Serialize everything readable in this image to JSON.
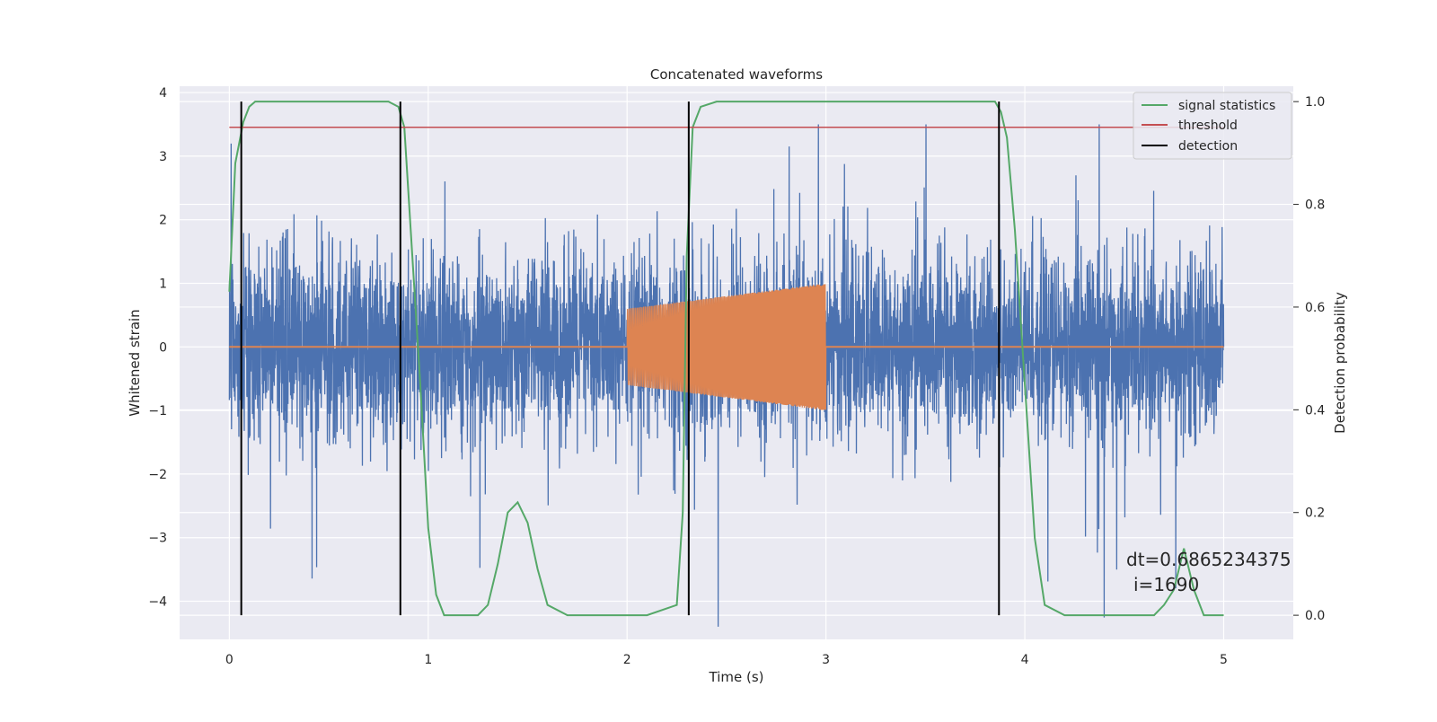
{
  "chart_data": {
    "type": "line",
    "title": "Concatenated waveforms",
    "xlabel": "Time (s)",
    "ylabel": "Whitened strain",
    "ylabel_right": "Detection probability",
    "xlim": [
      -0.25,
      5.35
    ],
    "ylim": [
      -4.6,
      4.1
    ],
    "ylim_right": [
      -0.047,
      1.03
    ],
    "xticks": [
      0,
      1,
      2,
      3,
      4,
      5
    ],
    "yticks": [
      4,
      3,
      2,
      1,
      0,
      -1,
      -2,
      -3,
      -4
    ],
    "yticks_right": [
      1.0,
      0.8,
      0.6,
      0.4,
      0.2,
      0.0
    ],
    "xtick_labels": [
      "0",
      "1",
      "2",
      "3",
      "4",
      "5"
    ],
    "ytick_labels": [
      "4",
      "3",
      "2",
      "1",
      "0",
      "−1",
      "−2",
      "−3",
      "−4"
    ],
    "ytick_labels_right": [
      "1.0",
      "0.8",
      "0.6",
      "0.4",
      "0.2",
      "0.0"
    ],
    "grid": true,
    "legend_position": "top-right",
    "legend": [
      "signal statistics",
      "threshold",
      "detection"
    ],
    "colors": {
      "background": "#eaeaf2",
      "grid": "#ffffff",
      "strain": "#4c72b0",
      "injection": "#dd8452",
      "signal_statistics": "#55a868",
      "threshold": "#c44e52",
      "detection": "#000000"
    },
    "series": [
      {
        "name": "",
        "axis": "left",
        "kind": "noise",
        "x_range": [
          0,
          5
        ],
        "typical_amplitude": [
          -1.2,
          1.3
        ],
        "peak_amplitude": [
          -4.4,
          3.5
        ]
      },
      {
        "name": "",
        "axis": "left",
        "kind": "chirp",
        "x_range": [
          2.0,
          3.0
        ],
        "amplitude_start": 0.6,
        "amplitude_end": 1.0,
        "baseline": 0.0
      },
      {
        "name": "signal statistics",
        "axis": "right",
        "x": [
          0.0,
          0.03,
          0.07,
          0.1,
          0.13,
          0.2,
          0.4,
          0.6,
          0.8,
          0.85,
          0.88,
          0.92,
          0.96,
          1.0,
          1.04,
          1.08,
          1.15,
          1.25,
          1.3,
          1.35,
          1.4,
          1.45,
          1.5,
          1.55,
          1.6,
          1.7,
          1.9,
          2.1,
          2.25,
          2.28,
          2.3,
          2.33,
          2.37,
          2.45,
          2.6,
          3.0,
          3.5,
          3.85,
          3.88,
          3.91,
          3.95,
          4.0,
          4.05,
          4.1,
          4.2,
          4.5,
          4.65,
          4.7,
          4.75,
          4.8,
          4.85,
          4.9,
          5.0
        ],
        "y": [
          0.63,
          0.88,
          0.96,
          0.99,
          1.0,
          1.0,
          1.0,
          1.0,
          1.0,
          0.99,
          0.95,
          0.7,
          0.45,
          0.17,
          0.04,
          0.0,
          0.0,
          0.0,
          0.02,
          0.1,
          0.2,
          0.22,
          0.18,
          0.09,
          0.02,
          0.0,
          0.0,
          0.0,
          0.02,
          0.2,
          0.7,
          0.95,
          0.99,
          1.0,
          1.0,
          1.0,
          1.0,
          1.0,
          0.98,
          0.93,
          0.75,
          0.45,
          0.15,
          0.02,
          0.0,
          0.0,
          0.0,
          0.02,
          0.05,
          0.13,
          0.05,
          0.0,
          0.0
        ]
      },
      {
        "name": "threshold",
        "axis": "right",
        "x": [
          0,
          5
        ],
        "y": [
          0.95,
          0.95
        ]
      }
    ],
    "detections": [
      0.06,
      0.86,
      2.31,
      3.87
    ],
    "annotations": [
      "dt=0.6865234375",
      "i=1690"
    ]
  }
}
